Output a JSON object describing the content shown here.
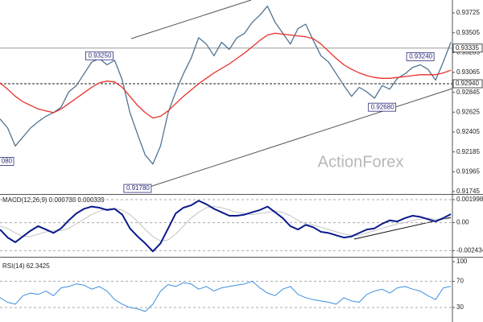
{
  "chart_data": [
    {
      "type": "line",
      "x": [
        0,
        1,
        2,
        3,
        4,
        5,
        6,
        7,
        8,
        9,
        10,
        11,
        12,
        13,
        14,
        15,
        16,
        17,
        18,
        19,
        20,
        21,
        22,
        23,
        24,
        25,
        26,
        27,
        28,
        29,
        30,
        31,
        32,
        33,
        34,
        35,
        36,
        37,
        38,
        39,
        40,
        41,
        42,
        43,
        44,
        45,
        46,
        47,
        48,
        49,
        50,
        51,
        52,
        53,
        54,
        55,
        56,
        57,
        58,
        59
      ],
      "xlim": [
        0,
        59.2
      ],
      "series": [
        {
          "color": "#4f7493",
          "values": [
            0.9255,
            0.9245,
            0.9225,
            0.9235,
            0.9245,
            0.9252,
            0.9258,
            0.9262,
            0.9268,
            0.9285,
            0.9292,
            0.9305,
            0.9318,
            0.9322,
            0.9315,
            0.932,
            0.9298,
            0.9262,
            0.9238,
            0.9215,
            0.9205,
            0.9225,
            0.9262,
            0.9285,
            0.9305,
            0.9322,
            0.9345,
            0.9338,
            0.9325,
            0.934,
            0.9332,
            0.9345,
            0.935,
            0.9362,
            0.937,
            0.938,
            0.9362,
            0.935,
            0.9338,
            0.9355,
            0.936,
            0.9342,
            0.9325,
            0.9318,
            0.9305,
            0.9292,
            0.928,
            0.929,
            0.9285,
            0.9278,
            0.9292,
            0.9288,
            0.93,
            0.9305,
            0.9312,
            0.9315,
            0.931,
            0.9298,
            0.9318,
            0.934
          ]
        },
        {
          "color": "#e8302a",
          "values": [
            0.9295,
            0.9288,
            0.928,
            0.9274,
            0.927,
            0.9266,
            0.9264,
            0.9262,
            0.9266,
            0.9272,
            0.9278,
            0.9284,
            0.929,
            0.9295,
            0.9297,
            0.9296,
            0.929,
            0.928,
            0.927,
            0.9262,
            0.9256,
            0.9258,
            0.9264,
            0.9272,
            0.928,
            0.9287,
            0.9294,
            0.93,
            0.9306,
            0.9311,
            0.9316,
            0.9322,
            0.9328,
            0.9335,
            0.9342,
            0.9348,
            0.935,
            0.9349,
            0.9348,
            0.9347,
            0.9346,
            0.9344,
            0.9338,
            0.933,
            0.9322,
            0.9315,
            0.931,
            0.9306,
            0.9303,
            0.9301,
            0.93,
            0.93,
            0.9301,
            0.9302,
            0.9303,
            0.9304,
            0.9304,
            0.9304,
            0.9306,
            0.9309
          ]
        }
      ],
      "ylim": [
        0.91727,
        0.93868
      ],
      "yticks": [
        0.93725,
        0.93505,
        0.93285,
        0.93065,
        0.92845,
        0.92625,
        0.92405,
        0.92185,
        0.91965,
        0.91745
      ],
      "hlines": [
        0.93335,
        {
          "value": 0.9294,
          "label": "0.92940"
        }
      ],
      "hline_styles": [
        "solid",
        "dashed"
      ],
      "annotations": [
        {
          "x": 13,
          "value": 0.9325,
          "label": "0.93250"
        },
        {
          "x": 18,
          "value": 0.9178,
          "label": "0.91780"
        },
        {
          "x": 50,
          "value": 0.9268,
          "label": "0.92680"
        },
        {
          "x": 55,
          "value": 0.9324,
          "label": "0.93240"
        },
        {
          "x": 0,
          "value": 0.9208,
          "label": "080"
        }
      ],
      "watermark": "ActionForex"
    },
    {
      "type": "line",
      "title": "MACD(12,26,9) 0.000738 0.000339",
      "x": [
        0,
        1,
        2,
        3,
        4,
        5,
        6,
        7,
        8,
        9,
        10,
        11,
        12,
        13,
        14,
        15,
        16,
        17,
        18,
        19,
        20,
        21,
        22,
        23,
        24,
        25,
        26,
        27,
        28,
        29,
        30,
        31,
        32,
        33,
        34,
        35,
        36,
        37,
        38,
        39,
        40,
        41,
        42,
        43,
        44,
        45,
        46,
        47,
        48,
        49,
        50,
        51,
        52,
        53,
        54,
        55,
        56,
        57,
        58,
        59
      ],
      "xlim": [
        0,
        59.2
      ],
      "series": [
        {
          "color": "#c4c4c4",
          "width": 1,
          "values": [
            -0.0003,
            -0.0005,
            -0.0009,
            -0.0012,
            -0.0012,
            -0.001,
            -0.0008,
            -0.0007,
            -0.0007,
            -0.0005,
            -0.0001,
            0.0003,
            0.0007,
            0.001,
            0.0012,
            0.0012,
            0.0011,
            0.0007,
            0.0001,
            -0.0006,
            -0.0012,
            -0.0016,
            -0.0015,
            -0.001,
            -0.0003,
            0.0004,
            0.0009,
            0.0013,
            0.0014,
            0.0013,
            0.0011,
            0.0009,
            0.0008,
            0.0007,
            0.0008,
            0.0009,
            0.001,
            0.0009,
            0.0006,
            0.0002,
            -0.0001,
            -0.0002,
            -0.0004,
            -0.0006,
            -0.0008,
            -0.001,
            -0.0011,
            -0.0011,
            -0.0009,
            -0.0007,
            -0.0005,
            -0.0003,
            -0.0001,
            0,
            0.0002,
            0.0003,
            0.0004,
            0.0003,
            0.0003,
            0.000339
          ]
        },
        {
          "color": "#0a1a8c",
          "width": 2,
          "values": [
            -0.0006,
            -0.0013,
            -0.0017,
            -0.0012,
            -0.0007,
            -0.0003,
            -0.0006,
            -0.0009,
            -0.0005,
            0.0002,
            0.0008,
            0.0012,
            0.0014,
            0.0013,
            0.0011,
            0.0012,
            0.0007,
            -0.0005,
            -0.0012,
            -0.0018,
            -0.0025,
            -0.0018,
            -0.0005,
            0.0008,
            0.0013,
            0.0015,
            0.0019,
            0.0016,
            0.0012,
            0.0009,
            0.0006,
            0.0006,
            0.0007,
            0.0009,
            0.0011,
            0.0014,
            0.0009,
            0.0004,
            -0.0003,
            -0.0006,
            -0.0002,
            -0.0004,
            -0.0008,
            -0.0009,
            -0.0011,
            -0.0013,
            -0.0012,
            -0.0009,
            -0.0006,
            -0.0005,
            -0.0001,
            0.0002,
            0.0001,
            0.0004,
            0.0006,
            0.0005,
            0.0003,
            0.0001,
            0.0004,
            0.000738
          ]
        }
      ],
      "ylim": [
        -0.0029,
        0.00235
      ],
      "yticks": [
        0.001998,
        {
          "value": 0,
          "label": "0.00"
        },
        -0.002434
      ],
      "grid": true
    },
    {
      "type": "line",
      "title": "RSI(14) 62.3425",
      "x": [
        0,
        1,
        2,
        3,
        4,
        5,
        6,
        7,
        8,
        9,
        10,
        11,
        12,
        13,
        14,
        15,
        16,
        17,
        18,
        19,
        20,
        21,
        22,
        23,
        24,
        25,
        26,
        27,
        28,
        29,
        30,
        31,
        32,
        33,
        34,
        35,
        36,
        37,
        38,
        39,
        40,
        41,
        42,
        43,
        44,
        45,
        46,
        47,
        48,
        49,
        50,
        51,
        52,
        53,
        54,
        55,
        56,
        57,
        58,
        59
      ],
      "xlim": [
        0,
        59.2
      ],
      "series": [
        {
          "color": "#3d8fe0",
          "width": 1,
          "values": [
            45,
            38,
            35,
            48,
            52,
            50,
            55,
            48,
            60,
            62,
            66,
            64,
            58,
            62,
            55,
            42,
            35,
            30,
            28,
            24,
            35,
            55,
            65,
            62,
            68,
            66,
            58,
            62,
            55,
            60,
            62,
            64,
            66,
            70,
            60,
            52,
            48,
            58,
            62,
            50,
            45,
            42,
            40,
            38,
            35,
            45,
            40,
            38,
            50,
            55,
            58,
            52,
            60,
            62,
            58,
            55,
            48,
            42,
            60,
            62.3425
          ]
        }
      ],
      "ylim": [
        7.9,
        100
      ],
      "yticks": [
        100,
        70,
        30
      ],
      "grid": true
    }
  ]
}
